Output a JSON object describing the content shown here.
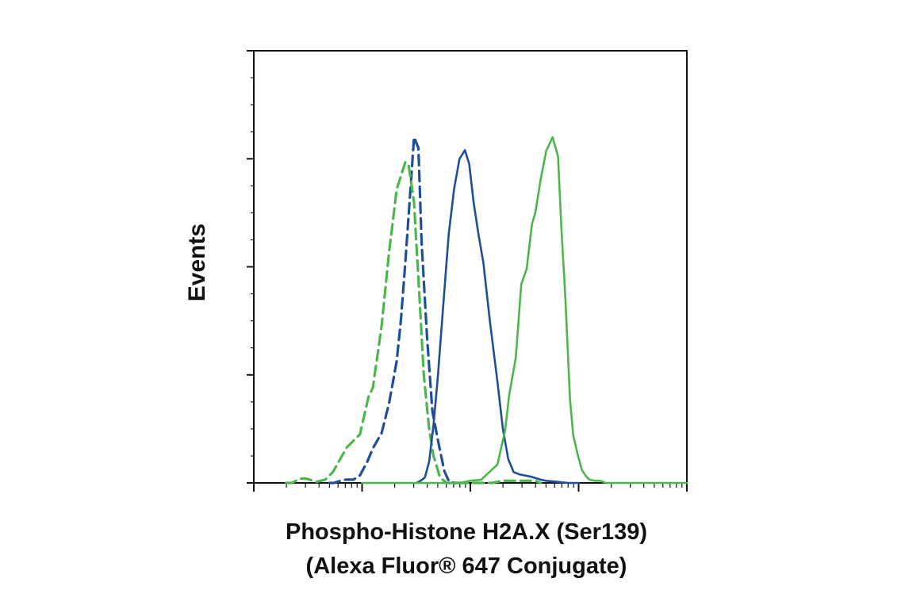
{
  "chart_data": {
    "type": "line",
    "title": "",
    "xlabel_line1": "Phospho-Histone H2A.X (Ser139)",
    "xlabel_line2": "(Alexa Fluor® 647 Conjugate)",
    "ylabel": "Events",
    "x_scale": "log",
    "xlim": [
      0,
      4
    ],
    "ylim": [
      0,
      4
    ],
    "x_major_ticks": [
      0,
      1,
      2,
      3,
      4
    ],
    "y_major_ticks": [
      0,
      1,
      2,
      3,
      4
    ],
    "grid": false,
    "legend": "none",
    "colors": {
      "blue": "#1f4e9c",
      "green": "#4bb64a"
    },
    "series": [
      {
        "color": "blue",
        "dash": true,
        "x": [
          0.7,
          0.74,
          0.8,
          0.85,
          0.92,
          0.98,
          1.05,
          1.1,
          1.18,
          1.25,
          1.32,
          1.36,
          1.4,
          1.45,
          1.48,
          1.52,
          1.55,
          1.6,
          1.65,
          1.7,
          1.76,
          1.8,
          1.85,
          1.9
        ],
        "y": [
          0.0,
          0.0,
          0.02,
          0.03,
          0.03,
          0.07,
          0.2,
          0.32,
          0.46,
          0.74,
          1.13,
          1.52,
          2.05,
          2.76,
          3.2,
          3.1,
          2.22,
          1.35,
          0.66,
          0.4,
          0.11,
          0.02,
          0.0,
          0.0
        ]
      },
      {
        "color": "green",
        "dash": true,
        "x": [
          0.3,
          0.35,
          0.39,
          0.44,
          0.48,
          0.58,
          0.66,
          0.73,
          0.86,
          0.98,
          1.06,
          1.1,
          1.18,
          1.25,
          1.32,
          1.4,
          1.43,
          1.48,
          1.5,
          1.52,
          1.57,
          1.62,
          1.66,
          1.72,
          1.78,
          2.2,
          2.3,
          2.6,
          2.65
        ],
        "y": [
          0.0,
          0.0,
          0.02,
          0.04,
          0.04,
          0.01,
          0.03,
          0.1,
          0.33,
          0.45,
          0.8,
          0.88,
          1.45,
          2.14,
          2.72,
          2.97,
          2.94,
          2.6,
          2.23,
          1.9,
          1.0,
          0.5,
          0.25,
          0.05,
          0.0,
          0.0,
          0.02,
          0.02,
          0.0
        ]
      },
      {
        "color": "blue",
        "dash": false,
        "x": [
          1.5,
          1.54,
          1.58,
          1.62,
          1.66,
          1.7,
          1.75,
          1.8,
          1.85,
          1.9,
          1.95,
          1.99,
          2.03,
          2.07,
          2.12,
          2.18,
          2.25,
          2.3,
          2.35,
          2.4,
          2.45,
          2.55,
          2.65,
          2.7,
          2.8,
          2.9,
          3.0
        ],
        "y": [
          0.0,
          0.02,
          0.05,
          0.2,
          0.54,
          0.98,
          1.65,
          2.3,
          2.72,
          3.0,
          3.08,
          2.95,
          2.6,
          2.33,
          2.04,
          1.5,
          0.94,
          0.5,
          0.22,
          0.1,
          0.08,
          0.06,
          0.03,
          0.02,
          0.01,
          0.0,
          0.0
        ]
      },
      {
        "color": "green",
        "dash": false,
        "x": [
          1.0,
          1.9,
          2.0,
          2.1,
          2.25,
          2.32,
          2.36,
          2.42,
          2.47,
          2.52,
          2.57,
          2.6,
          2.65,
          2.7,
          2.76,
          2.81,
          2.84,
          2.88,
          2.92,
          2.95,
          2.99,
          3.03,
          3.07,
          3.1,
          3.15,
          3.2,
          3.25,
          3.3,
          3.4,
          3.6,
          4.0
        ],
        "y": [
          0.0,
          0.0,
          0.02,
          0.03,
          0.17,
          0.48,
          0.82,
          1.16,
          1.84,
          1.98,
          2.4,
          2.5,
          2.81,
          3.07,
          3.2,
          3.02,
          2.37,
          1.67,
          0.78,
          0.44,
          0.27,
          0.12,
          0.06,
          0.03,
          0.02,
          0.02,
          0.0,
          0.0,
          0.0,
          0.0,
          0.0
        ]
      }
    ]
  }
}
